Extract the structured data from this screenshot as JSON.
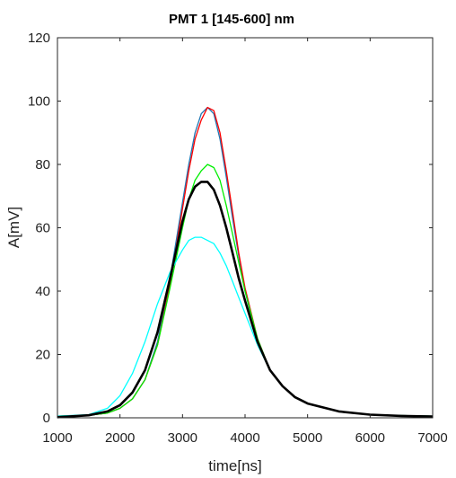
{
  "chart_data": {
    "type": "line",
    "title": "PMT 1 [145-600] nm",
    "xlabel": "time[ns]",
    "ylabel": "A[mV]",
    "xlim": [
      1000,
      7000
    ],
    "ylim": [
      0,
      120
    ],
    "xticks": [
      1000,
      2000,
      3000,
      4000,
      5000,
      6000,
      7000
    ],
    "yticks": [
      0,
      20,
      40,
      60,
      80,
      100,
      120
    ],
    "grid": false,
    "legend": "none",
    "series": [
      {
        "color": "#1f77b4",
        "x": [
          1000,
          1500,
          1800,
          2000,
          2200,
          2400,
          2600,
          2800,
          3000,
          3100,
          3200,
          3300,
          3400,
          3500,
          3600,
          3700,
          3800,
          3900,
          4000,
          4200,
          4400,
          4600,
          4800,
          5000,
          5500,
          6000,
          6500,
          7000
        ],
        "y": [
          0.5,
          0.8,
          1.5,
          3,
          6,
          12,
          24,
          44,
          68,
          80,
          90,
          96,
          98,
          96,
          88,
          76,
          63,
          51,
          40,
          24,
          15,
          10,
          6.5,
          4.5,
          2,
          1,
          0.7,
          0.5
        ]
      },
      {
        "color": "#ff0000",
        "x": [
          1000,
          1500,
          1800,
          2000,
          2200,
          2400,
          2600,
          2800,
          3000,
          3100,
          3200,
          3300,
          3400,
          3500,
          3600,
          3700,
          3800,
          3900,
          4000,
          4200,
          4400,
          4600,
          4800,
          5000,
          5500,
          6000,
          6500,
          7000
        ],
        "y": [
          0.5,
          0.8,
          1.5,
          3,
          6,
          12,
          23,
          42,
          66,
          78,
          88,
          94,
          98,
          97,
          90,
          78,
          65,
          52,
          41,
          25,
          15,
          10,
          6.5,
          4.5,
          2,
          1,
          0.7,
          0.5
        ]
      },
      {
        "color": "#00ee00",
        "x": [
          1000,
          1500,
          1800,
          2000,
          2200,
          2400,
          2600,
          2800,
          3000,
          3100,
          3200,
          3300,
          3400,
          3500,
          3600,
          3700,
          3800,
          3900,
          4000,
          4200,
          4400,
          4600,
          4800,
          5000,
          5500,
          6000,
          6500,
          7000
        ],
        "y": [
          0.5,
          0.8,
          1.5,
          3,
          6,
          12,
          23,
          41,
          60,
          69,
          75,
          78,
          80,
          79,
          75,
          67,
          58,
          49,
          40,
          25,
          15,
          10,
          6.5,
          4.5,
          2,
          1,
          0.7,
          0.5
        ]
      },
      {
        "color": "#00ffff",
        "x": [
          1000,
          1500,
          1800,
          2000,
          2200,
          2400,
          2600,
          2800,
          3000,
          3100,
          3200,
          3300,
          3400,
          3500,
          3600,
          3700,
          3800,
          3900,
          4000,
          4200,
          4400,
          4600,
          4800,
          5000,
          5500,
          6000,
          6500,
          7000
        ],
        "y": [
          0.5,
          1,
          3,
          7,
          14,
          24,
          36,
          46,
          53,
          56,
          57,
          57,
          56,
          55,
          52,
          48,
          43,
          38,
          33,
          23,
          15,
          10,
          6.5,
          4.5,
          2,
          1,
          0.7,
          0.5
        ]
      },
      {
        "color": "#000000",
        "x": [
          1000,
          1500,
          1800,
          2000,
          2200,
          2400,
          2600,
          2800,
          3000,
          3100,
          3200,
          3300,
          3400,
          3500,
          3600,
          3700,
          3800,
          3900,
          4000,
          4200,
          4400,
          4600,
          4800,
          5000,
          5500,
          6000,
          6500,
          7000
        ],
        "y": [
          0.2,
          0.8,
          2,
          4,
          8,
          15,
          27,
          44,
          62,
          69,
          73,
          74.5,
          74.5,
          72,
          67,
          60,
          52,
          44,
          37,
          24,
          15,
          10,
          6.5,
          4.5,
          2,
          1,
          0.6,
          0.4
        ]
      }
    ]
  }
}
